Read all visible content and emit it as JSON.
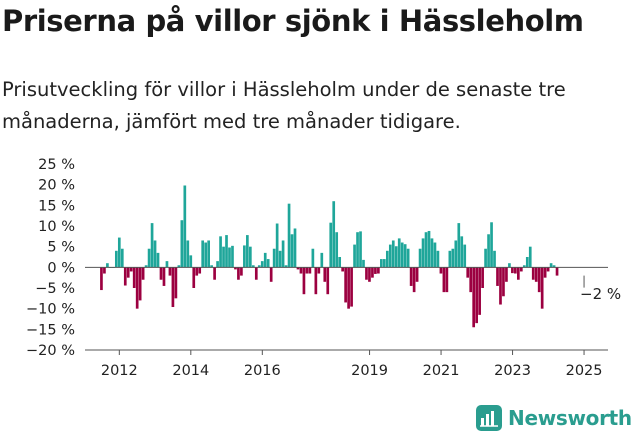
{
  "title": "Priserna på villor sjönk i Hässleholm",
  "subtitle": "Prisutveckling för villor i Hässleholm under de senaste tre månaderna, jämfört med tre månader tidigare.",
  "brand": "Newsworthy",
  "colors": {
    "positive": "#1fa69a",
    "negative": "#9c0040",
    "axis": "#555555",
    "text": "#222222"
  },
  "chart_data": {
    "type": "bar",
    "title": "Priserna på villor sjönk i Hässleholm",
    "xlabel": "",
    "ylabel": "",
    "ylim": [
      -20,
      25
    ],
    "x_range": [
      2011.04,
      2025.67
    ],
    "yticks": [
      25,
      20,
      15,
      10,
      5,
      0,
      -5,
      -10,
      -15,
      -20
    ],
    "ytick_labels": [
      "25 %",
      "20 %",
      "15 %",
      "10 %",
      "5 %",
      "0 %",
      "−5 %",
      "−10 %",
      "−15 %",
      "−20 %"
    ],
    "xticks": [
      2012,
      2014,
      2016,
      2019,
      2021,
      2023,
      2025
    ],
    "xtick_labels": [
      "2012",
      "2014",
      "2016",
      "2019",
      "2021",
      "2023",
      "2025"
    ],
    "annotation": {
      "x": 2025.0,
      "y": -2,
      "text": "−2 %"
    },
    "series": [
      {
        "name": "Prisutveckling",
        "start": 2011.5,
        "step": 0.0833,
        "values": [
          -5.5,
          -1.5,
          1,
          0,
          0,
          4,
          7.2,
          4.5,
          -4.4,
          -2.5,
          -1,
          -5,
          -10,
          -8,
          -3,
          0.5,
          4.5,
          10.7,
          6.5,
          3.5,
          -3,
          -4.5,
          1.5,
          -2,
          -9.6,
          -7.5,
          0.5,
          11.4,
          19.8,
          6.5,
          2.9,
          -5,
          -2,
          -1.5,
          6.5,
          6,
          6.5,
          0.5,
          -3,
          1.5,
          7.5,
          5,
          7.8,
          4.8,
          5.2,
          -0.5,
          -3,
          -2,
          5.3,
          7.8,
          5,
          0.5,
          -3,
          0.5,
          1.5,
          3.5,
          2,
          -3.5,
          4.5,
          10.6,
          4,
          6.5,
          0.5,
          15.4,
          8,
          9.4,
          -0.5,
          -1.5,
          -6.5,
          -1.5,
          -1.5,
          4.5,
          -6.5,
          -1.5,
          3.5,
          -3.5,
          -6.5,
          10.8,
          16,
          8.5,
          2.5,
          -1,
          -8.5,
          -10,
          -9.5,
          5.5,
          8.5,
          8.7,
          1.8,
          -3,
          -3.5,
          -2.5,
          -1.6,
          -1.5,
          2,
          2,
          4,
          5.5,
          6.5,
          5.1,
          7,
          6,
          5.6,
          4.5,
          -4.5,
          -6,
          -3.5,
          4.5,
          7,
          8.5,
          8.8,
          7,
          6,
          4,
          -1.5,
          -6,
          -6,
          4,
          4.5,
          6.5,
          10.7,
          7.5,
          5.5,
          -2.5,
          -6,
          -14.5,
          -13.5,
          -11.5,
          -5,
          4.5,
          8,
          10.9,
          4,
          -4.5,
          -9,
          -7,
          -3.5,
          1,
          -1.4,
          -1.5,
          -3,
          -1,
          0.5,
          2.5,
          5,
          -3,
          -3.5,
          -6,
          -10,
          -2.5,
          -1,
          1,
          0.5,
          -2
        ]
      }
    ]
  }
}
